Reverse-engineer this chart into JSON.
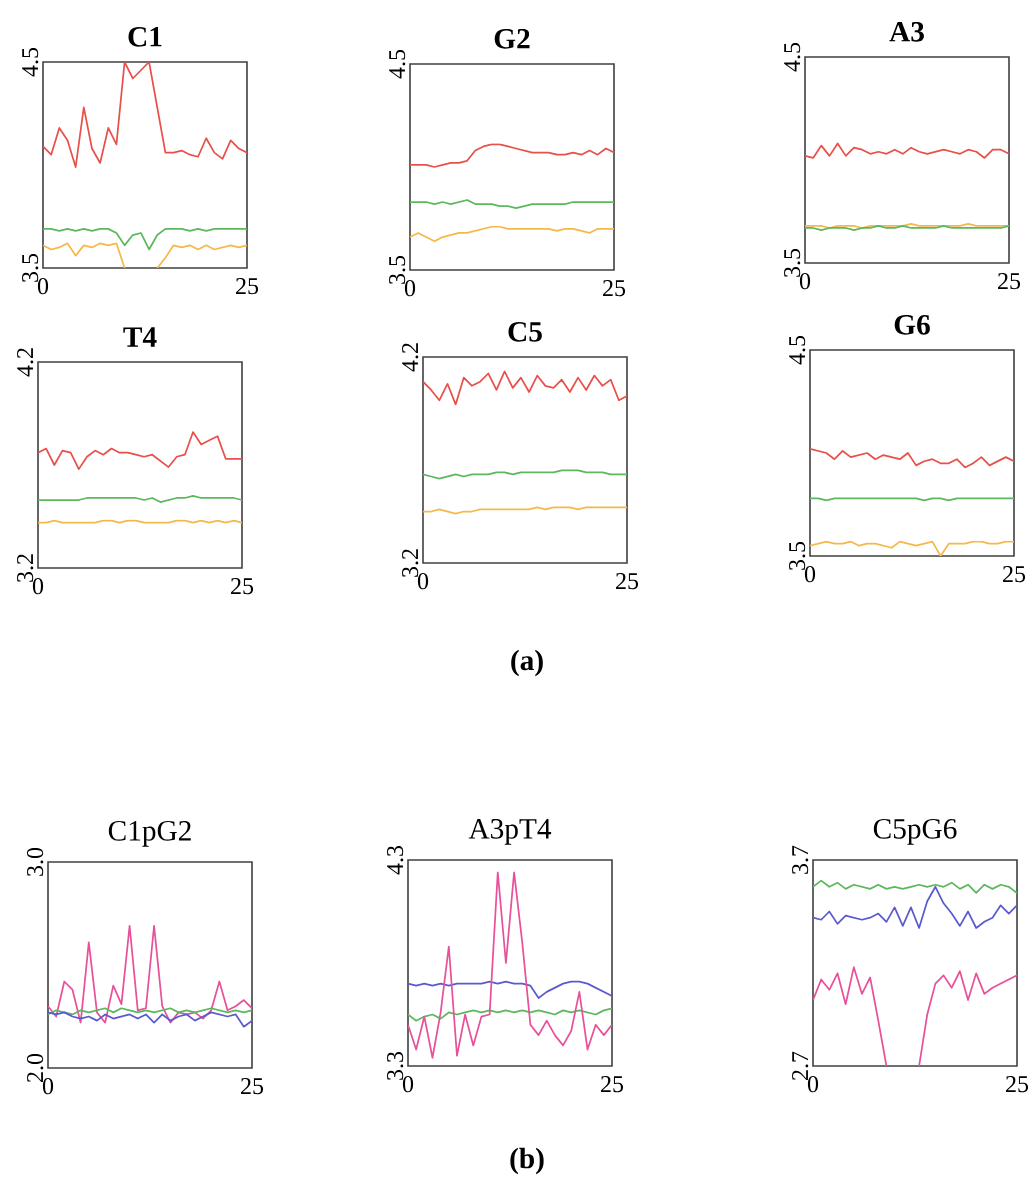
{
  "chart_data": [
    {
      "type": "line",
      "title": "C1",
      "x": [
        0,
        1,
        2,
        3,
        4,
        5,
        6,
        7,
        8,
        9,
        10,
        11,
        12,
        13,
        14,
        15,
        16,
        17,
        18,
        19,
        20,
        21,
        22,
        23,
        24,
        25
      ],
      "xlim": [
        0,
        25
      ],
      "xticks": [
        0,
        25
      ],
      "ylim": [
        3.5,
        4.5
      ],
      "yticks": [
        3.5,
        4.5
      ],
      "series": [
        {
          "color": "#e8504a",
          "values": [
            4.09,
            4.05,
            4.18,
            4.12,
            3.99,
            4.28,
            4.08,
            4.01,
            4.18,
            4.1,
            4.5,
            4.42,
            4.46,
            4.5,
            4.28,
            4.06,
            4.06,
            4.07,
            4.05,
            4.04,
            4.13,
            4.06,
            4.03,
            4.12,
            4.08,
            4.06
          ]
        },
        {
          "color": "#5cb85c",
          "values": [
            3.69,
            3.69,
            3.68,
            3.69,
            3.68,
            3.69,
            3.68,
            3.69,
            3.69,
            3.67,
            3.61,
            3.66,
            3.67,
            3.59,
            3.66,
            3.69,
            3.69,
            3.69,
            3.68,
            3.69,
            3.68,
            3.69,
            3.69,
            3.69,
            3.69,
            3.69
          ]
        },
        {
          "color": "#f5b84a",
          "values": [
            3.61,
            3.59,
            3.6,
            3.62,
            3.56,
            3.61,
            3.6,
            3.62,
            3.61,
            3.62,
            3.5,
            null,
            null,
            null,
            3.5,
            3.55,
            3.61,
            3.6,
            3.61,
            3.59,
            3.61,
            3.59,
            3.6,
            3.61,
            3.6,
            3.61
          ]
        }
      ]
    },
    {
      "type": "line",
      "title": "G2",
      "x": [
        0,
        1,
        2,
        3,
        4,
        5,
        6,
        7,
        8,
        9,
        10,
        11,
        12,
        13,
        14,
        15,
        16,
        17,
        18,
        19,
        20,
        21,
        22,
        23,
        24,
        25
      ],
      "xlim": [
        0,
        25
      ],
      "xticks": [
        0,
        25
      ],
      "ylim": [
        3.5,
        4.5
      ],
      "yticks": [
        3.5,
        4.5
      ],
      "series": [
        {
          "color": "#e8504a",
          "values": [
            4.01,
            4.01,
            4.01,
            4.0,
            4.01,
            4.02,
            4.02,
            4.03,
            4.08,
            4.1,
            4.11,
            4.11,
            4.1,
            4.09,
            4.08,
            4.07,
            4.07,
            4.07,
            4.06,
            4.06,
            4.07,
            4.06,
            4.08,
            4.06,
            4.09,
            4.07
          ]
        },
        {
          "color": "#5cb85c",
          "values": [
            3.83,
            3.83,
            3.83,
            3.82,
            3.83,
            3.82,
            3.83,
            3.84,
            3.82,
            3.82,
            3.82,
            3.81,
            3.81,
            3.8,
            3.81,
            3.82,
            3.82,
            3.82,
            3.82,
            3.82,
            3.83,
            3.83,
            3.83,
            3.83,
            3.83,
            3.83
          ]
        },
        {
          "color": "#f5b84a",
          "values": [
            3.66,
            3.68,
            3.66,
            3.64,
            3.66,
            3.67,
            3.68,
            3.68,
            3.69,
            3.7,
            3.71,
            3.71,
            3.7,
            3.7,
            3.7,
            3.7,
            3.7,
            3.7,
            3.69,
            3.7,
            3.7,
            3.69,
            3.68,
            3.7,
            3.7,
            3.7
          ]
        }
      ]
    },
    {
      "type": "line",
      "title": "A3",
      "x": [
        0,
        1,
        2,
        3,
        4,
        5,
        6,
        7,
        8,
        9,
        10,
        11,
        12,
        13,
        14,
        15,
        16,
        17,
        18,
        19,
        20,
        21,
        22,
        23,
        24,
        25
      ],
      "xlim": [
        0,
        25
      ],
      "xticks": [
        0,
        25
      ],
      "ylim": [
        3.5,
        4.5
      ],
      "yticks": [
        3.5,
        4.5
      ],
      "series": [
        {
          "color": "#e8504a",
          "values": [
            4.02,
            4.01,
            4.07,
            4.02,
            4.08,
            4.02,
            4.06,
            4.05,
            4.03,
            4.04,
            4.03,
            4.05,
            4.03,
            4.06,
            4.04,
            4.03,
            4.04,
            4.05,
            4.04,
            4.03,
            4.05,
            4.04,
            4.01,
            4.05,
            4.05,
            4.03
          ]
        },
        {
          "color": "#f5b84a",
          "values": [
            3.68,
            3.68,
            3.68,
            3.67,
            3.68,
            3.68,
            3.68,
            3.67,
            3.68,
            3.68,
            3.68,
            3.68,
            3.68,
            3.69,
            3.68,
            3.68,
            3.68,
            3.68,
            3.68,
            3.68,
            3.69,
            3.68,
            3.68,
            3.68,
            3.68,
            3.68
          ]
        },
        {
          "color": "#5cb85c",
          "values": [
            3.67,
            3.67,
            3.66,
            3.67,
            3.67,
            3.67,
            3.66,
            3.67,
            3.67,
            3.68,
            3.67,
            3.67,
            3.68,
            3.67,
            3.67,
            3.67,
            3.67,
            3.68,
            3.67,
            3.67,
            3.67,
            3.67,
            3.67,
            3.67,
            3.67,
            3.68
          ]
        }
      ]
    },
    {
      "type": "line",
      "title": "T4",
      "x": [
        0,
        1,
        2,
        3,
        4,
        5,
        6,
        7,
        8,
        9,
        10,
        11,
        12,
        13,
        14,
        15,
        16,
        17,
        18,
        19,
        20,
        21,
        22,
        23,
        24,
        25
      ],
      "xlim": [
        0,
        25
      ],
      "xticks": [
        0,
        25
      ],
      "ylim": [
        3.2,
        4.2
      ],
      "yticks": [
        3.2,
        4.2
      ],
      "series": [
        {
          "color": "#e8504a",
          "values": [
            3.76,
            3.78,
            3.7,
            3.77,
            3.76,
            3.68,
            3.74,
            3.77,
            3.75,
            3.78,
            3.76,
            3.76,
            3.75,
            3.74,
            3.75,
            3.72,
            3.69,
            3.74,
            3.75,
            3.86,
            3.8,
            3.82,
            3.84,
            3.73,
            3.73,
            3.73
          ]
        },
        {
          "color": "#5cb85c",
          "values": [
            3.53,
            3.53,
            3.53,
            3.53,
            3.53,
            3.53,
            3.54,
            3.54,
            3.54,
            3.54,
            3.54,
            3.54,
            3.54,
            3.53,
            3.54,
            3.52,
            3.53,
            3.54,
            3.54,
            3.55,
            3.54,
            3.54,
            3.54,
            3.54,
            3.54,
            3.53
          ]
        },
        {
          "color": "#f5b84a",
          "values": [
            3.42,
            3.42,
            3.43,
            3.42,
            3.42,
            3.42,
            3.42,
            3.42,
            3.43,
            3.43,
            3.42,
            3.43,
            3.43,
            3.42,
            3.42,
            3.42,
            3.42,
            3.43,
            3.43,
            3.42,
            3.43,
            3.42,
            3.43,
            3.42,
            3.43,
            3.42
          ]
        }
      ]
    },
    {
      "type": "line",
      "title": "C5",
      "x": [
        0,
        1,
        2,
        3,
        4,
        5,
        6,
        7,
        8,
        9,
        10,
        11,
        12,
        13,
        14,
        15,
        16,
        17,
        18,
        19,
        20,
        21,
        22,
        23,
        24,
        25
      ],
      "xlim": [
        0,
        25
      ],
      "xticks": [
        0,
        25
      ],
      "ylim": [
        3.2,
        4.2
      ],
      "yticks": [
        3.2,
        4.2
      ],
      "annotations": [
        "(a)"
      ],
      "series": [
        {
          "color": "#e8504a",
          "values": [
            4.08,
            4.04,
            3.99,
            4.07,
            3.97,
            4.1,
            4.06,
            4.08,
            4.12,
            4.04,
            4.13,
            4.05,
            4.1,
            4.03,
            4.11,
            4.06,
            4.05,
            4.09,
            4.03,
            4.1,
            4.04,
            4.11,
            4.06,
            4.09,
            3.99,
            4.01
          ]
        },
        {
          "color": "#5cb85c",
          "values": [
            3.63,
            3.62,
            3.61,
            3.62,
            3.63,
            3.62,
            3.63,
            3.63,
            3.63,
            3.64,
            3.64,
            3.63,
            3.64,
            3.64,
            3.64,
            3.64,
            3.64,
            3.65,
            3.65,
            3.65,
            3.64,
            3.64,
            3.64,
            3.63,
            3.63,
            3.63
          ]
        },
        {
          "color": "#f5b84a",
          "values": [
            3.45,
            3.45,
            3.46,
            3.45,
            3.44,
            3.45,
            3.45,
            3.46,
            3.46,
            3.46,
            3.46,
            3.46,
            3.46,
            3.46,
            3.47,
            3.46,
            3.47,
            3.47,
            3.47,
            3.46,
            3.47,
            3.47,
            3.47,
            3.47,
            3.47,
            3.47
          ]
        }
      ]
    },
    {
      "type": "line",
      "title": "G6",
      "x": [
        0,
        1,
        2,
        3,
        4,
        5,
        6,
        7,
        8,
        9,
        10,
        11,
        12,
        13,
        14,
        15,
        16,
        17,
        18,
        19,
        20,
        21,
        22,
        23,
        24,
        25
      ],
      "xlim": [
        0,
        25
      ],
      "xticks": [
        0,
        25
      ],
      "ylim": [
        3.5,
        4.5
      ],
      "yticks": [
        3.5,
        4.5
      ],
      "series": [
        {
          "color": "#e8504a",
          "values": [
            4.02,
            4.01,
            4.0,
            3.97,
            4.01,
            3.98,
            3.99,
            4.0,
            3.97,
            3.99,
            3.98,
            3.97,
            4.0,
            3.94,
            3.96,
            3.97,
            3.95,
            3.95,
            3.97,
            3.93,
            3.95,
            3.98,
            3.94,
            3.96,
            3.98,
            3.96
          ]
        },
        {
          "color": "#5cb85c",
          "values": [
            3.78,
            3.78,
            3.77,
            3.78,
            3.78,
            3.78,
            3.78,
            3.78,
            3.78,
            3.78,
            3.78,
            3.78,
            3.78,
            3.78,
            3.77,
            3.78,
            3.78,
            3.77,
            3.78,
            3.78,
            3.78,
            3.78,
            3.78,
            3.78,
            3.78,
            3.78
          ]
        },
        {
          "color": "#f5b84a",
          "values": [
            3.55,
            3.56,
            3.57,
            3.56,
            3.56,
            3.57,
            3.55,
            3.56,
            3.56,
            3.55,
            3.54,
            3.57,
            3.56,
            3.55,
            3.56,
            3.57,
            3.5,
            3.56,
            3.56,
            3.56,
            3.57,
            3.57,
            3.56,
            3.56,
            3.57,
            3.57
          ]
        }
      ]
    },
    {
      "type": "line",
      "title": "C1pG2",
      "x": [
        0,
        1,
        2,
        3,
        4,
        5,
        6,
        7,
        8,
        9,
        10,
        11,
        12,
        13,
        14,
        15,
        16,
        17,
        18,
        19,
        20,
        21,
        22,
        23,
        24,
        25
      ],
      "xlim": [
        0,
        25
      ],
      "xticks": [
        0,
        25
      ],
      "ylim": [
        2,
        3
      ],
      "yticks": [
        {
          "value": 2,
          "label": "2.0"
        },
        {
          "value": 3,
          "label": "3.0"
        }
      ],
      "series": [
        {
          "color": "#e8509a",
          "values": [
            2.3,
            2.25,
            2.42,
            2.38,
            2.22,
            2.61,
            2.27,
            2.22,
            2.4,
            2.31,
            2.69,
            2.28,
            2.29,
            2.69,
            2.3,
            2.22,
            2.27,
            2.26,
            2.27,
            2.24,
            2.28,
            2.42,
            2.28,
            2.3,
            2.33,
            2.29
          ]
        },
        {
          "color": "#5cb85c",
          "values": [
            2.26,
            2.28,
            2.27,
            2.26,
            2.28,
            2.27,
            2.28,
            2.29,
            2.27,
            2.29,
            2.28,
            2.27,
            2.28,
            2.27,
            2.28,
            2.29,
            2.27,
            2.28,
            2.27,
            2.28,
            2.29,
            2.28,
            2.27,
            2.28,
            2.27,
            2.28
          ]
        },
        {
          "color": "#5a5ad0",
          "values": [
            2.27,
            2.26,
            2.27,
            2.25,
            2.24,
            2.25,
            2.23,
            2.26,
            2.24,
            2.25,
            2.26,
            2.24,
            2.26,
            2.22,
            2.26,
            2.23,
            2.25,
            2.26,
            2.23,
            2.25,
            2.27,
            2.26,
            2.25,
            2.26,
            2.2,
            2.23
          ]
        }
      ]
    },
    {
      "type": "line",
      "title": "A3pT4",
      "x": [
        0,
        1,
        2,
        3,
        4,
        5,
        6,
        7,
        8,
        9,
        10,
        11,
        12,
        13,
        14,
        15,
        16,
        17,
        18,
        19,
        20,
        21,
        22,
        23,
        24,
        25
      ],
      "xlim": [
        0,
        25
      ],
      "xticks": [
        0,
        25
      ],
      "ylim": [
        3.3,
        4.3
      ],
      "yticks": [
        3.3,
        4.3
      ],
      "annotations": [
        "(b)"
      ],
      "series": [
        {
          "color": "#5a5ad0",
          "values": [
            3.7,
            3.69,
            3.7,
            3.69,
            3.7,
            3.69,
            3.7,
            3.7,
            3.7,
            3.7,
            3.71,
            3.7,
            3.71,
            3.7,
            3.7,
            3.69,
            3.63,
            3.66,
            3.68,
            3.7,
            3.71,
            3.71,
            3.7,
            3.68,
            3.66,
            3.64
          ]
        },
        {
          "color": "#5cb85c",
          "values": [
            3.55,
            3.52,
            3.54,
            3.55,
            3.53,
            3.56,
            3.55,
            3.56,
            3.57,
            3.56,
            3.57,
            3.56,
            3.57,
            3.56,
            3.57,
            3.56,
            3.57,
            3.56,
            3.55,
            3.57,
            3.56,
            3.57,
            3.56,
            3.55,
            3.57,
            3.58
          ]
        },
        {
          "color": "#e8509a",
          "values": [
            3.5,
            3.38,
            3.54,
            3.34,
            3.56,
            3.88,
            3.35,
            3.55,
            3.4,
            3.54,
            3.55,
            4.24,
            3.8,
            4.24,
            3.9,
            3.5,
            3.45,
            3.52,
            3.45,
            3.4,
            3.47,
            3.66,
            3.38,
            3.5,
            3.45,
            3.5
          ]
        }
      ]
    },
    {
      "type": "line",
      "title": "C5pG6",
      "x": [
        0,
        1,
        2,
        3,
        4,
        5,
        6,
        7,
        8,
        9,
        10,
        11,
        12,
        13,
        14,
        15,
        16,
        17,
        18,
        19,
        20,
        21,
        22,
        23,
        24,
        25
      ],
      "xlim": [
        0,
        25
      ],
      "xticks": [
        0,
        25
      ],
      "ylim": [
        2.7,
        3.7
      ],
      "yticks": [
        2.7,
        3.7
      ],
      "series": [
        {
          "color": "#5cb85c",
          "values": [
            3.57,
            3.6,
            3.57,
            3.59,
            3.56,
            3.58,
            3.57,
            3.56,
            3.58,
            3.56,
            3.57,
            3.56,
            3.57,
            3.58,
            3.57,
            3.58,
            3.57,
            3.59,
            3.56,
            3.58,
            3.54,
            3.58,
            3.56,
            3.58,
            3.57,
            3.54
          ]
        },
        {
          "color": "#5a5ad0",
          "values": [
            3.42,
            3.41,
            3.45,
            3.39,
            3.43,
            3.42,
            3.41,
            3.42,
            3.44,
            3.4,
            3.47,
            3.38,
            3.47,
            3.37,
            3.5,
            3.57,
            3.49,
            3.44,
            3.38,
            3.45,
            3.37,
            3.4,
            3.42,
            3.48,
            3.44,
            3.48
          ]
        },
        {
          "color": "#e8509a",
          "values": [
            3.02,
            3.12,
            3.07,
            3.15,
            3.0,
            3.18,
            3.05,
            3.13,
            2.92,
            2.7,
            null,
            null,
            null,
            2.7,
            2.95,
            3.1,
            3.14,
            3.08,
            3.16,
            3.02,
            3.15,
            3.05,
            3.08,
            3.1,
            3.12,
            3.14
          ]
        }
      ]
    }
  ]
}
